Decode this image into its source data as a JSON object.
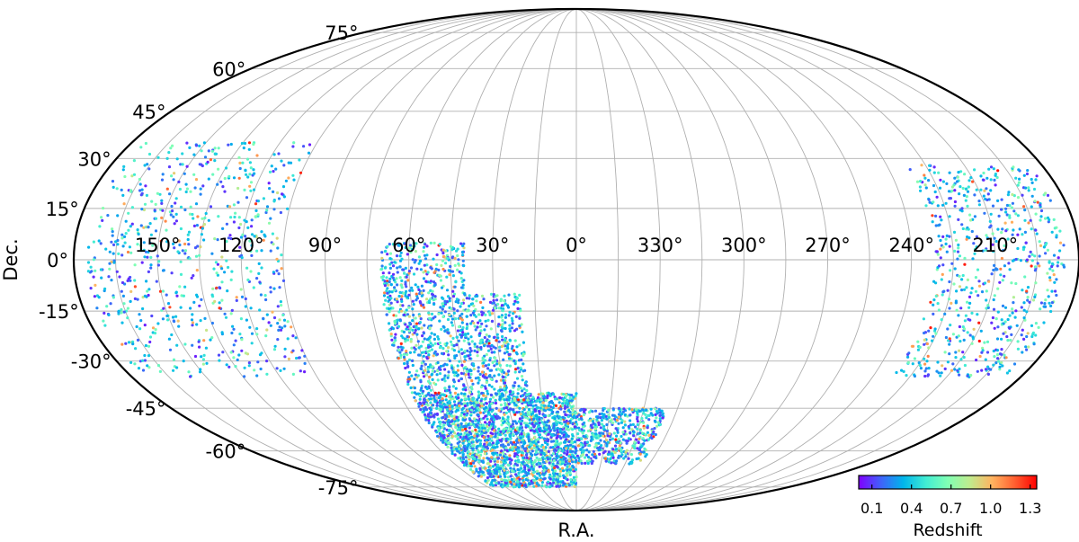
{
  "chart_data": {
    "type": "scatter",
    "projection": "mollweide",
    "xlabel": "R.A.",
    "ylabel": "Dec.",
    "ra_ticks": [
      {
        "value": 150,
        "label": "150°"
      },
      {
        "value": 120,
        "label": "120°"
      },
      {
        "value": 90,
        "label": "90°"
      },
      {
        "value": 60,
        "label": "60°"
      },
      {
        "value": 30,
        "label": "30°"
      },
      {
        "value": 0,
        "label": "0°"
      },
      {
        "value": 330,
        "label": "330°"
      },
      {
        "value": 300,
        "label": "300°"
      },
      {
        "value": 270,
        "label": "270°"
      },
      {
        "value": 240,
        "label": "240°"
      },
      {
        "value": 210,
        "label": "210°"
      }
    ],
    "dec_ticks": [
      {
        "value": 75,
        "label": "75°"
      },
      {
        "value": 60,
        "label": "60°"
      },
      {
        "value": 45,
        "label": "45°"
      },
      {
        "value": 30,
        "label": "30°"
      },
      {
        "value": 15,
        "label": "15°"
      },
      {
        "value": 0,
        "label": "0°"
      },
      {
        "value": -15,
        "label": "-15°"
      },
      {
        "value": -30,
        "label": "-30°"
      },
      {
        "value": -45,
        "label": "-45°"
      },
      {
        "value": -60,
        "label": "-60°"
      },
      {
        "value": -75,
        "label": "-75°"
      }
    ],
    "ra_range": [
      0,
      360
    ],
    "dec_range": [
      -90,
      90
    ],
    "ra_increases": "left",
    "grid": true,
    "colorbar": {
      "label": "Redshift",
      "range": [
        0.0,
        1.35
      ],
      "ticks": [
        {
          "value": 0.1,
          "label": "0.1"
        },
        {
          "value": 0.4,
          "label": "0.4"
        },
        {
          "value": 0.7,
          "label": "0.7"
        },
        {
          "value": 1.0,
          "label": "1.0"
        },
        {
          "value": 1.3,
          "label": "1.3"
        }
      ],
      "colormap": "rainbow",
      "placement": "bottom-right"
    },
    "regions": [
      {
        "ra_min": 105,
        "ra_max": 175,
        "dec_min": -35,
        "dec_max": 35,
        "density": 720
      },
      {
        "ra_min": 185,
        "ra_max": 232,
        "dec_min": -35,
        "dec_max": 28,
        "density": 650
      },
      {
        "ra_min": 0,
        "ra_max": 70,
        "dec_min": -75,
        "dec_max": -40,
        "density": 2200
      },
      {
        "ra_min": 20,
        "ra_max": 70,
        "dec_min": -40,
        "dec_max": -10,
        "density": 900
      },
      {
        "ra_min": 40,
        "ra_max": 70,
        "dec_min": -10,
        "dec_max": 5,
        "density": 250
      },
      {
        "ra_min": 320,
        "ra_max": 360,
        "dec_min": -65,
        "dec_max": -45,
        "density": 500
      }
    ]
  }
}
